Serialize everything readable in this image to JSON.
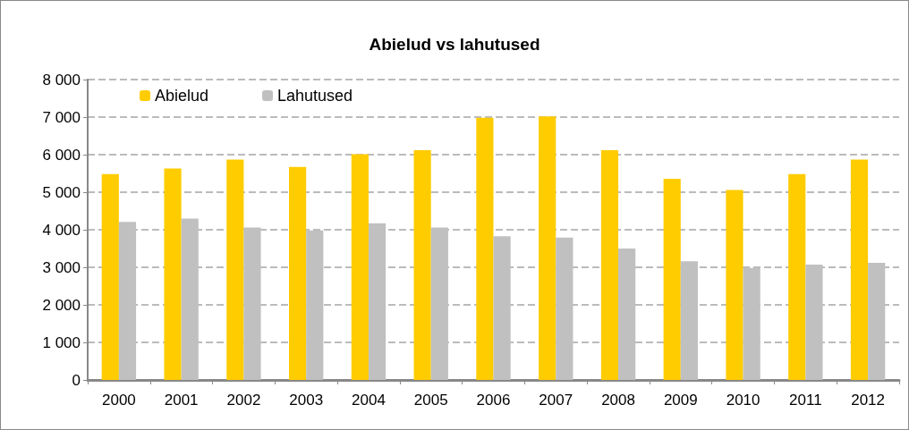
{
  "chart_data": {
    "type": "bar",
    "title": "Abielud vs lahutused",
    "categories": [
      "2000",
      "2001",
      "2002",
      "2003",
      "2004",
      "2005",
      "2006",
      "2007",
      "2008",
      "2009",
      "2010",
      "2011",
      "2012"
    ],
    "series": [
      {
        "name": "Abielud",
        "color": "#ffcc00",
        "values": [
          5480,
          5630,
          5870,
          5670,
          6010,
          6120,
          6980,
          7020,
          6120,
          5360,
          5060,
          5480,
          5870
        ]
      },
      {
        "name": "Lahutused",
        "color": "#c0c0c0",
        "values": [
          4210,
          4300,
          4060,
          3980,
          4170,
          4060,
          3830,
          3790,
          3500,
          3160,
          2980,
          3070,
          3120
        ]
      }
    ],
    "ylim": [
      0,
      8000
    ],
    "yticks": [
      0,
      {
        "value": 1000,
        "label": "1 000"
      },
      {
        "value": 2000,
        "label": "2 000"
      },
      {
        "value": 3000,
        "label": "3 000"
      },
      {
        "value": 4000,
        "label": "4 000"
      },
      {
        "value": 5000,
        "label": "5 000"
      },
      {
        "value": 6000,
        "label": "6 000"
      },
      {
        "value": 7000,
        "label": "7 000"
      },
      {
        "value": 8000,
        "label": "8 000"
      }
    ],
    "grid": "y",
    "legend": "top left"
  }
}
